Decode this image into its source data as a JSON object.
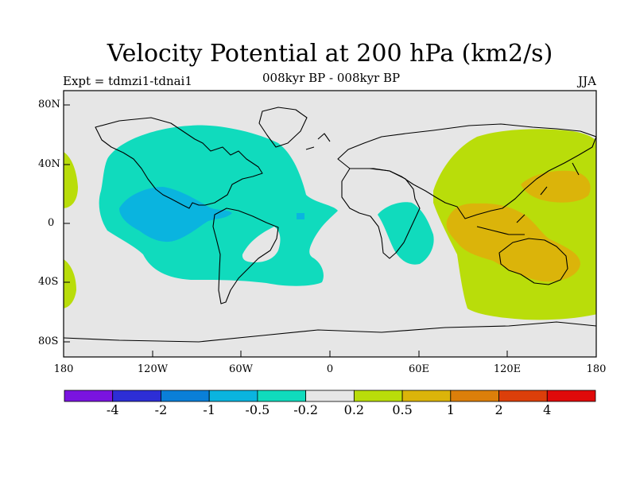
{
  "title": "Velocity Potential at 200 hPa (km2/s)",
  "subtitle_left": "Expt = tdmzi1-tdnai1",
  "subtitle_center": "008kyr BP - 008kyr BP",
  "subtitle_right": "JJA",
  "y_labels": [
    "80N",
    "40N",
    "0",
    "40S",
    "80S"
  ],
  "x_labels": [
    "180",
    "120W",
    "60W",
    "0",
    "60E",
    "120E",
    "180"
  ],
  "colorbar": {
    "colors": [
      "#7a14e0",
      "#2d2ed6",
      "#0a7fd8",
      "#0ab4df",
      "#10dbbd",
      "#e6e6e6",
      "#b9dd0a",
      "#dbb40a",
      "#dc7f0a",
      "#dc3f0a",
      "#e00a0a"
    ],
    "labels": [
      "-4",
      "-2",
      "-1",
      "-0.5",
      "-0.2",
      "0.2",
      "0.5",
      "1",
      "2",
      "4"
    ]
  },
  "chart_data": {
    "type": "heatmap",
    "title": "Velocity Potential at 200 hPa (km2/s)",
    "xlim": [
      -180,
      180
    ],
    "ylim": [
      -90,
      90
    ],
    "levels": [
      -4,
      -2,
      -1,
      -0.5,
      -0.2,
      0.2,
      0.5,
      1,
      2,
      4
    ]
  }
}
